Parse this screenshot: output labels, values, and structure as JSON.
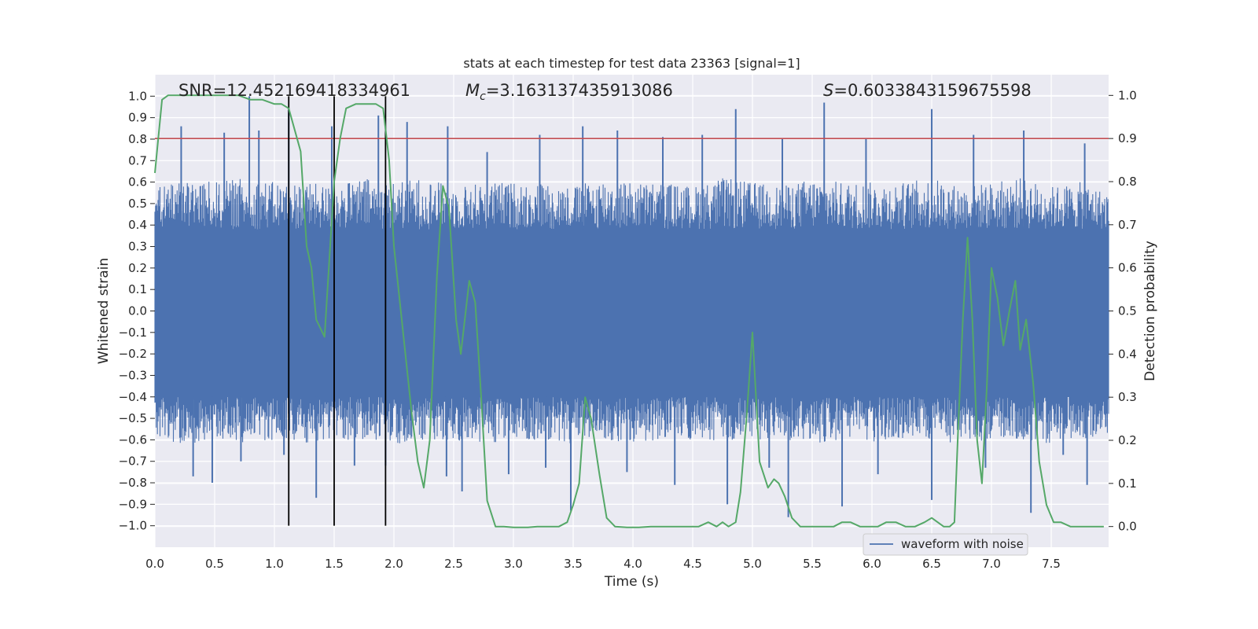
{
  "chart_data": {
    "type": "line",
    "title": "stats at each timestep for test data 23363 [signal=1]",
    "xlabel": "Time (s)",
    "ylabel": "Whitened strain",
    "y2label": "Detection probability",
    "xlim": [
      0.0,
      7.98
    ],
    "ylim": [
      -1.1,
      1.1
    ],
    "y2lim": [
      -0.048,
      1.048
    ],
    "grid": true,
    "x_ticks": [
      "0.0",
      "0.5",
      "1.0",
      "1.5",
      "2.0",
      "2.5",
      "3.0",
      "3.5",
      "4.0",
      "4.5",
      "5.0",
      "5.5",
      "6.0",
      "6.5",
      "7.0",
      "7.5"
    ],
    "y_ticks": [
      "1.0",
      "0.9",
      "0.8",
      "0.7",
      "0.6",
      "0.5",
      "0.4",
      "0.3",
      "0.2",
      "0.1",
      "0.0",
      "−0.1",
      "−0.2",
      "−0.3",
      "−0.4",
      "−0.5",
      "−0.6",
      "−0.7",
      "−0.8",
      "−0.9",
      "−1.0"
    ],
    "y2_ticks": [
      "1.0",
      "0.9",
      "0.8",
      "0.7",
      "0.6",
      "0.5",
      "0.4",
      "0.3",
      "0.2",
      "0.1",
      "0.0"
    ],
    "annotations": {
      "snr": "SNR=12.452169418334961",
      "mc_symbol": "M",
      "mc_sub": "c",
      "mc_value": "=3.163137435913086",
      "s_symbol": "S",
      "s_value": "=0.6033843159675598"
    },
    "legend": {
      "label": "waveform with noise",
      "position": "lower-right"
    },
    "threshold_line": {
      "axis": "right",
      "y": 0.9,
      "color": "#c44e52"
    },
    "vertical_lines": [
      1.12,
      1.5,
      1.93
    ],
    "series": [
      {
        "name": "waveform with noise",
        "axis": "left",
        "color": "#4c72b0",
        "envelope": {
          "x": [
            0.0,
            0.25,
            0.5,
            0.75,
            1.0,
            1.25,
            1.5,
            1.75,
            2.0,
            2.25,
            2.5,
            2.75,
            3.0,
            3.25,
            3.5,
            3.75,
            4.0,
            4.25,
            4.5,
            4.75,
            5.0,
            5.25,
            5.5,
            5.75,
            6.0,
            6.25,
            6.5,
            6.75,
            7.0,
            7.25,
            7.5,
            7.75,
            7.98
          ],
          "upper": [
            0.58,
            0.62,
            0.6,
            0.62,
            0.6,
            0.6,
            0.58,
            0.62,
            0.6,
            0.62,
            0.58,
            0.6,
            0.6,
            0.6,
            0.58,
            0.62,
            0.6,
            0.6,
            0.58,
            0.62,
            0.6,
            0.58,
            0.62,
            0.6,
            0.6,
            0.6,
            0.62,
            0.58,
            0.6,
            0.62,
            0.58,
            0.6,
            0.55
          ],
          "lower": [
            -0.6,
            -0.62,
            -0.6,
            -0.62,
            -0.6,
            -0.62,
            -0.6,
            -0.6,
            -0.62,
            -0.6,
            -0.6,
            -0.62,
            -0.6,
            -0.6,
            -0.62,
            -0.6,
            -0.62,
            -0.6,
            -0.6,
            -0.62,
            -0.6,
            -0.6,
            -0.62,
            -0.6,
            -0.62,
            -0.6,
            -0.6,
            -0.62,
            -0.6,
            -0.6,
            -0.62,
            -0.6,
            -0.58
          ],
          "core_upper": 0.38,
          "core_lower": -0.4
        },
        "spikes": [
          {
            "x": 0.22,
            "y": 0.86
          },
          {
            "x": 0.58,
            "y": 0.83
          },
          {
            "x": 0.79,
            "y": 1.0
          },
          {
            "x": 0.87,
            "y": 0.84
          },
          {
            "x": 1.12,
            "y": 0.94
          },
          {
            "x": 1.48,
            "y": 0.86
          },
          {
            "x": 1.87,
            "y": 0.91
          },
          {
            "x": 2.11,
            "y": 0.88
          },
          {
            "x": 2.45,
            "y": 0.86
          },
          {
            "x": 2.78,
            "y": 0.74
          },
          {
            "x": 3.22,
            "y": 0.82
          },
          {
            "x": 3.58,
            "y": 0.86
          },
          {
            "x": 3.87,
            "y": 0.84
          },
          {
            "x": 4.25,
            "y": 0.81
          },
          {
            "x": 4.58,
            "y": 0.82
          },
          {
            "x": 4.86,
            "y": 0.94
          },
          {
            "x": 5.25,
            "y": 0.8
          },
          {
            "x": 5.6,
            "y": 0.97
          },
          {
            "x": 5.95,
            "y": 0.8
          },
          {
            "x": 6.5,
            "y": 0.94
          },
          {
            "x": 6.85,
            "y": 0.82
          },
          {
            "x": 7.27,
            "y": 0.84
          },
          {
            "x": 7.78,
            "y": 0.78
          },
          {
            "x": 0.32,
            "y": -0.77
          },
          {
            "x": 0.48,
            "y": -0.8
          },
          {
            "x": 0.72,
            "y": -0.7
          },
          {
            "x": 1.08,
            "y": -0.67
          },
          {
            "x": 1.35,
            "y": -0.87
          },
          {
            "x": 1.67,
            "y": -0.72
          },
          {
            "x": 1.93,
            "y": -0.72
          },
          {
            "x": 2.44,
            "y": -0.77
          },
          {
            "x": 2.57,
            "y": -0.84
          },
          {
            "x": 2.96,
            "y": -0.76
          },
          {
            "x": 3.27,
            "y": -0.73
          },
          {
            "x": 3.48,
            "y": -0.93
          },
          {
            "x": 3.95,
            "y": -0.75
          },
          {
            "x": 4.35,
            "y": -0.81
          },
          {
            "x": 4.79,
            "y": -0.9
          },
          {
            "x": 5.14,
            "y": -0.73
          },
          {
            "x": 5.3,
            "y": -0.96
          },
          {
            "x": 5.75,
            "y": -0.91
          },
          {
            "x": 6.05,
            "y": -0.76
          },
          {
            "x": 6.5,
            "y": -0.88
          },
          {
            "x": 6.95,
            "y": -0.73
          },
          {
            "x": 7.33,
            "y": -0.94
          },
          {
            "x": 7.6,
            "y": -0.67
          },
          {
            "x": 7.8,
            "y": -0.81
          }
        ]
      },
      {
        "name": "detection probability",
        "axis": "right",
        "color": "#55a868",
        "x": [
          0.0,
          0.06,
          0.11,
          0.2,
          0.3,
          0.4,
          0.5,
          0.6,
          0.7,
          0.8,
          0.9,
          1.0,
          1.06,
          1.12,
          1.17,
          1.22,
          1.27,
          1.31,
          1.35,
          1.42,
          1.46,
          1.5,
          1.55,
          1.6,
          1.68,
          1.76,
          1.85,
          1.91,
          1.96,
          2.0,
          2.05,
          2.1,
          2.15,
          2.2,
          2.25,
          2.3,
          2.36,
          2.41,
          2.46,
          2.52,
          2.56,
          2.63,
          2.68,
          2.73,
          2.78,
          2.85,
          2.92,
          3.0,
          3.06,
          3.12,
          3.2,
          3.3,
          3.38,
          3.45,
          3.5,
          3.55,
          3.58,
          3.6,
          3.65,
          3.72,
          3.78,
          3.85,
          3.95,
          4.05,
          4.15,
          4.3,
          4.45,
          4.55,
          4.63,
          4.7,
          4.75,
          4.8,
          4.86,
          4.9,
          4.95,
          5.0,
          5.06,
          5.13,
          5.18,
          5.22,
          5.27,
          5.33,
          5.4,
          5.5,
          5.6,
          5.68,
          5.75,
          5.82,
          5.9,
          5.98,
          6.05,
          6.12,
          6.2,
          6.28,
          6.36,
          6.44,
          6.5,
          6.55,
          6.6,
          6.65,
          6.69,
          6.72,
          6.76,
          6.8,
          6.84,
          6.88,
          6.92,
          6.96,
          7.0,
          7.05,
          7.1,
          7.15,
          7.2,
          7.24,
          7.29,
          7.35,
          7.4,
          7.46,
          7.52,
          7.58,
          7.66,
          7.76,
          7.87,
          7.94
        ],
        "y": [
          0.82,
          0.99,
          1.0,
          1.0,
          1.0,
          1.0,
          1.0,
          1.0,
          1.0,
          0.99,
          0.99,
          0.98,
          0.98,
          0.97,
          0.92,
          0.87,
          0.65,
          0.6,
          0.48,
          0.44,
          0.62,
          0.8,
          0.9,
          0.97,
          0.98,
          0.98,
          0.98,
          0.97,
          0.85,
          0.65,
          0.52,
          0.39,
          0.26,
          0.15,
          0.09,
          0.2,
          0.58,
          0.79,
          0.74,
          0.48,
          0.4,
          0.57,
          0.52,
          0.3,
          0.06,
          0.0,
          0.0,
          -0.002,
          -0.002,
          -0.002,
          0.0,
          0.0,
          0.0,
          0.01,
          0.05,
          0.1,
          0.22,
          0.3,
          0.25,
          0.12,
          0.02,
          0.0,
          -0.002,
          -0.002,
          0.0,
          0.0,
          0.0,
          0.0,
          0.01,
          0.0,
          0.01,
          0.0,
          0.01,
          0.08,
          0.25,
          0.45,
          0.15,
          0.09,
          0.11,
          0.1,
          0.07,
          0.02,
          0.0,
          0.0,
          0.0,
          0.0,
          0.01,
          0.01,
          0.0,
          0.0,
          0.0,
          0.01,
          0.01,
          0.0,
          0.0,
          0.01,
          0.02,
          0.01,
          0.0,
          0.0,
          0.01,
          0.22,
          0.48,
          0.67,
          0.48,
          0.2,
          0.1,
          0.32,
          0.6,
          0.53,
          0.42,
          0.5,
          0.57,
          0.41,
          0.48,
          0.33,
          0.15,
          0.05,
          0.01,
          0.01,
          0.0,
          0.0,
          0.0,
          0.0
        ]
      }
    ]
  }
}
